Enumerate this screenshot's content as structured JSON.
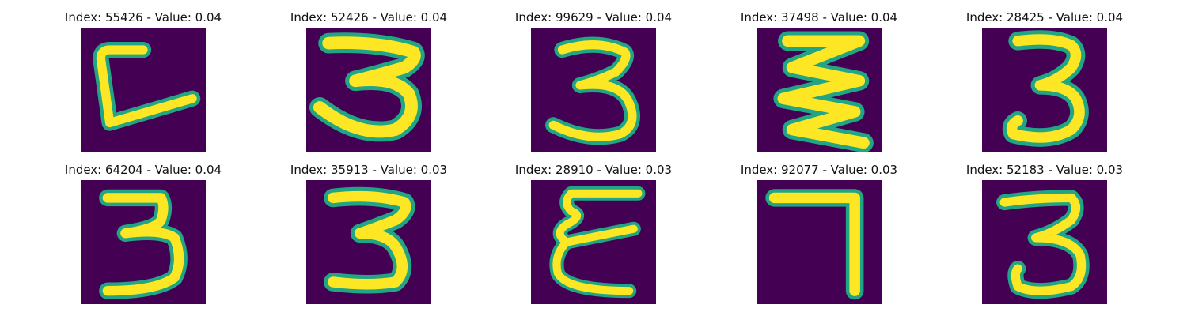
{
  "panels": [
    {
      "index": "55426",
      "value": "0.04",
      "title": "Index: 55426 - Value: 0.04",
      "glyph": "L-bracket"
    },
    {
      "index": "52426",
      "value": "0.04",
      "title": "Index: 52426 - Value: 0.04",
      "glyph": "3"
    },
    {
      "index": "99629",
      "value": "0.04",
      "title": "Index: 99629 - Value: 0.04",
      "glyph": "3"
    },
    {
      "index": "37498",
      "value": "0.04",
      "title": "Index: 37498 - Value: 0.04",
      "glyph": "zigzag-3"
    },
    {
      "index": "28425",
      "value": "0.04",
      "title": "Index: 28425 - Value: 0.04",
      "glyph": "3"
    },
    {
      "index": "64204",
      "value": "0.04",
      "title": "Index: 64204 - Value: 0.04",
      "glyph": "3"
    },
    {
      "index": "35913",
      "value": "0.03",
      "title": "Index: 35913 - Value: 0.03",
      "glyph": "3"
    },
    {
      "index": "28910",
      "value": "0.03",
      "title": "Index: 28910 - Value: 0.03",
      "glyph": "epsilon-3"
    },
    {
      "index": "92077",
      "value": "0.03",
      "title": "Index: 92077 - Value: 0.03",
      "glyph": "7"
    },
    {
      "index": "52183",
      "value": "0.03",
      "title": "Index: 52183 - Value: 0.03",
      "glyph": "3"
    }
  ],
  "colors": {
    "background": "#440154",
    "stroke_outer": "#21a585",
    "stroke_inner": "#fde725"
  }
}
